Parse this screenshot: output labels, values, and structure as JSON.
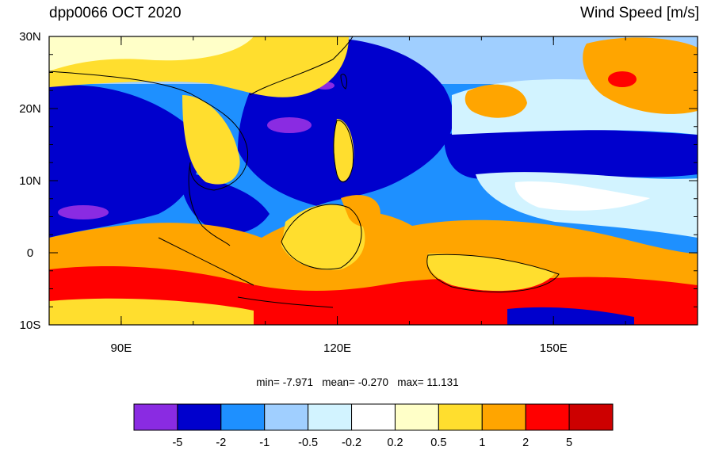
{
  "header": {
    "left_title": "dpp0066 OCT 2020",
    "right_title": "Wind Speed [m/s]"
  },
  "map": {
    "lat_ticks": [
      {
        "value": 30,
        "label": "30N"
      },
      {
        "value": 20,
        "label": "20N"
      },
      {
        "value": 10,
        "label": "10N"
      },
      {
        "value": 0,
        "label": "0"
      },
      {
        "value": -10,
        "label": "10S"
      }
    ],
    "lon_ticks": [
      {
        "value": 90,
        "label": "90E"
      },
      {
        "value": 120,
        "label": "120E"
      },
      {
        "value": 150,
        "label": "150E"
      }
    ],
    "lon_range": [
      80,
      170
    ],
    "lat_range": [
      -10,
      30
    ],
    "colors": {
      "land_outline": "#000000",
      "ocean_base": "#1e90ff"
    }
  },
  "stats": {
    "min_label": "min=",
    "min": "-7.971",
    "mean_label": "mean=",
    "mean": "-0.270",
    "max_label": "max=",
    "max": "11.131"
  },
  "colorbar": {
    "colors": [
      "#8a2be2",
      "#0000cd",
      "#1e90ff",
      "#a0cfff",
      "#d2f3ff",
      "#ffffff",
      "#ffffc8",
      "#ffde2e",
      "#ffa500",
      "#ff0000",
      "#cd0000"
    ],
    "labels": [
      "-5",
      "-2",
      "-1",
      "-0.5",
      "-0.2",
      "0.2",
      "0.5",
      "1",
      "2",
      "5"
    ]
  }
}
